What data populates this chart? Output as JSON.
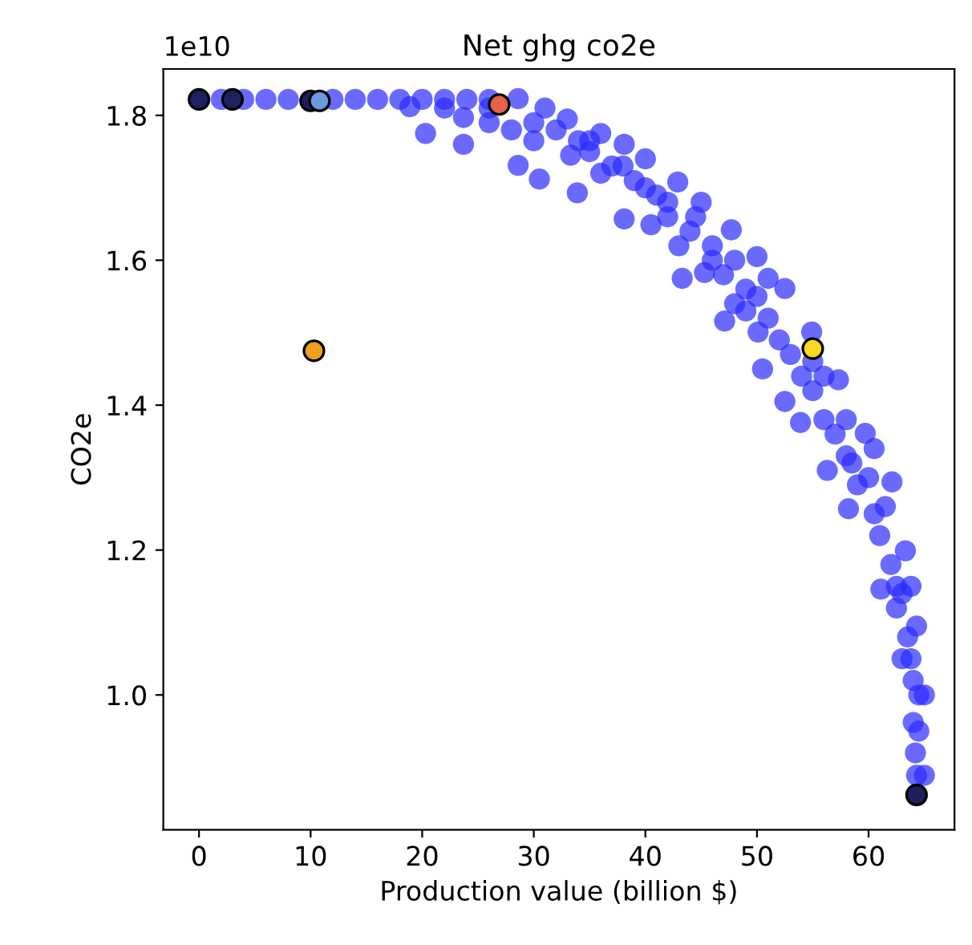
{
  "chart_data": {
    "type": "scatter",
    "title": "Net ghg co2e",
    "xlabel": "Production value (billion $)",
    "ylabel": "CO2e",
    "annotations": [
      "1e10"
    ],
    "xlim": [
      -3.2,
      67.7
    ],
    "xticks": [
      0,
      10,
      20,
      30,
      40,
      50,
      60
    ],
    "ylim": [
      0.814,
      1.864
    ],
    "yticks": [
      {
        "value": 1.0,
        "label": "1.0"
      },
      1.2,
      1.4,
      1.6,
      1.8
    ],
    "grid": false,
    "legend": false,
    "marker": "circle",
    "series": [
      {
        "color": "#2b2bff",
        "x": [
          2,
          4,
          6,
          8,
          12,
          14,
          16,
          18,
          20,
          22,
          24,
          26,
          28.6,
          31,
          33,
          36,
          38.1,
          40,
          42.9,
          45,
          47.7,
          50,
          52.5,
          54.9,
          57.3,
          59.7,
          62.1,
          63.3,
          64.3,
          65.0,
          65.0,
          18.9,
          23.7,
          26,
          28,
          30,
          33.3,
          36,
          40.5,
          43,
          45.3,
          48,
          50.1,
          52.5,
          56.3,
          58.2,
          61.1,
          63.0,
          64.0,
          64.3,
          28.6,
          30.5,
          33.9,
          38.1,
          43.3,
          47.1,
          50.5,
          53.9,
          23.7,
          20.3,
          30,
          34,
          38,
          42,
          46,
          49,
          52,
          55,
          58,
          60.5,
          62.5,
          63.8,
          64.5,
          32,
          35,
          37,
          39,
          41,
          42,
          44,
          46,
          47,
          48,
          49,
          50,
          51,
          53,
          54,
          55,
          56,
          57,
          58,
          58.5,
          59,
          60,
          61,
          61.5,
          62,
          62.5,
          63,
          63.5,
          64,
          64.5,
          64.2,
          26,
          22,
          35,
          40,
          44.5,
          51,
          56,
          60.5,
          63.8
        ],
        "values": [
          1.822,
          1.822,
          1.822,
          1.822,
          1.822,
          1.822,
          1.822,
          1.822,
          1.822,
          1.822,
          1.822,
          1.822,
          1.823,
          1.81,
          1.795,
          1.775,
          1.76,
          1.74,
          1.708,
          1.68,
          1.642,
          1.605,
          1.561,
          1.501,
          1.435,
          1.361,
          1.294,
          1.199,
          1.095,
          1.0,
          0.889,
          1.812,
          1.797,
          1.79,
          1.78,
          1.765,
          1.745,
          1.72,
          1.649,
          1.62,
          1.583,
          1.54,
          1.501,
          1.405,
          1.31,
          1.257,
          1.146,
          1.05,
          0.962,
          0.889,
          1.731,
          1.712,
          1.693,
          1.657,
          1.575,
          1.516,
          1.45,
          1.376,
          1.76,
          1.775,
          1.79,
          1.765,
          1.73,
          1.68,
          1.62,
          1.56,
          1.49,
          1.42,
          1.33,
          1.25,
          1.15,
          1.05,
          0.95,
          1.78,
          1.75,
          1.73,
          1.71,
          1.69,
          1.66,
          1.64,
          1.6,
          1.58,
          1.6,
          1.53,
          1.55,
          1.52,
          1.47,
          1.44,
          1.46,
          1.38,
          1.36,
          1.38,
          1.32,
          1.29,
          1.3,
          1.22,
          1.26,
          1.18,
          1.12,
          1.14,
          1.08,
          1.02,
          1.0,
          0.92,
          1.81,
          1.81,
          1.765,
          1.7,
          1.66,
          1.575,
          1.44,
          1.34,
          1.15
        ]
      },
      {
        "color": "#1f2060",
        "x": [
          0
        ],
        "values": [
          1.822
        ]
      },
      {
        "color": "#1f2060",
        "x": [
          3
        ],
        "values": [
          1.822
        ]
      },
      {
        "color": "#1f2060",
        "x": [
          10.0
        ],
        "values": [
          1.82
        ]
      },
      {
        "color": "#6a9ae0",
        "x": [
          10.8
        ],
        "values": [
          1.82
        ]
      },
      {
        "color": "#e8604a",
        "x": [
          26.9
        ],
        "values": [
          1.815
        ]
      },
      {
        "color": "#f0a020",
        "x": [
          10.3
        ],
        "values": [
          1.475
        ]
      },
      {
        "color": "#f8d820",
        "x": [
          55.0
        ],
        "values": [
          1.478
        ]
      },
      {
        "color": "#1f2060",
        "x": [
          64.3
        ],
        "values": [
          0.862
        ]
      }
    ]
  }
}
